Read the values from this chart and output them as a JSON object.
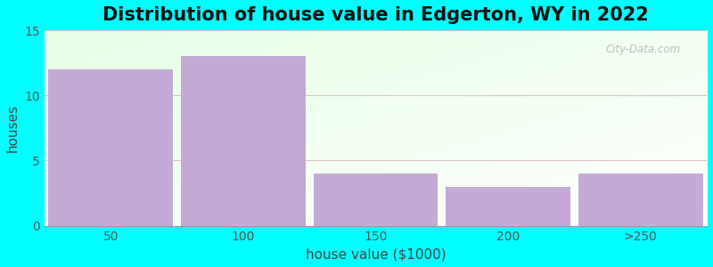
{
  "title": "Distribution of house value in Edgerton, WY in 2022",
  "xlabel": "house value ($1000)",
  "ylabel": "houses",
  "categories": [
    "50",
    "100",
    "150",
    "200",
    ">250"
  ],
  "values": [
    12,
    13,
    4,
    3,
    4
  ],
  "bar_color": "#c4aad4",
  "ylim": [
    0,
    15
  ],
  "yticks": [
    0,
    5,
    10,
    15
  ],
  "background_color": "#00ffff",
  "plot_bg_color": "#efffef",
  "title_fontsize": 15,
  "axis_label_fontsize": 11,
  "tick_fontsize": 10,
  "edges": [
    25,
    75,
    125,
    175,
    225,
    275
  ],
  "grid_color": "#e8c8c8",
  "watermark": "City-Data.com"
}
